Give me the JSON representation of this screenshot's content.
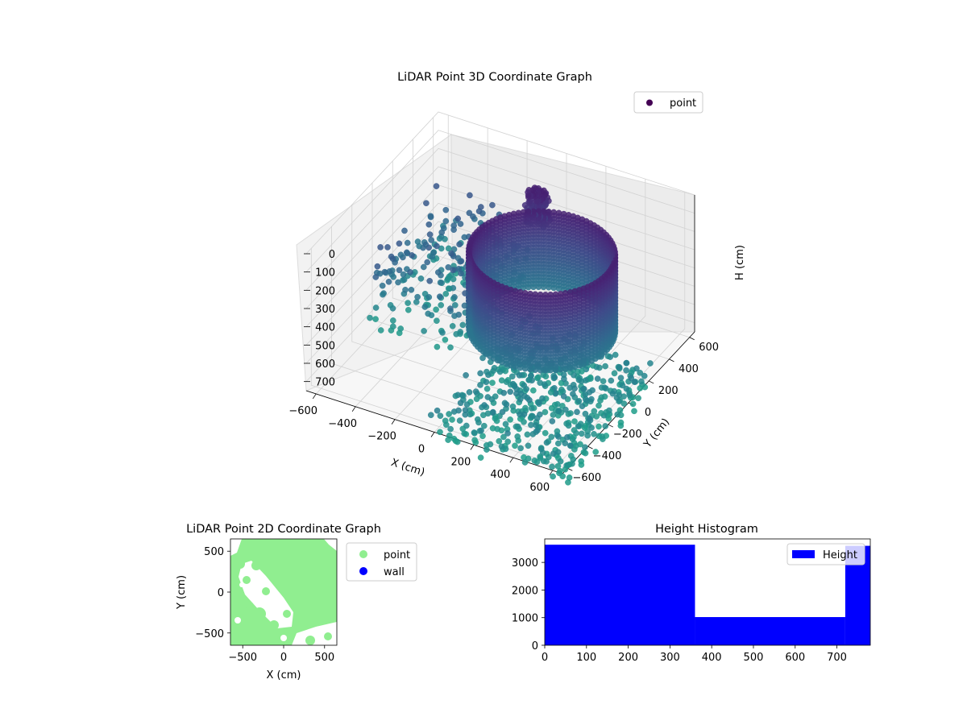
{
  "chart_data": [
    {
      "type": "scatter",
      "projection": "3d",
      "title": "LiDAR Point 3D Coordinate Graph",
      "xlabel": "X (cm)",
      "ylabel": "Y (cm)",
      "zlabel": "H (cm)",
      "xlim": [
        -650,
        650
      ],
      "ylim": [
        -650,
        650
      ],
      "zlim": [
        750,
        0
      ],
      "z_axis_inverted": true,
      "x_ticks": [
        -600,
        -400,
        -200,
        0,
        200,
        400,
        600
      ],
      "y_ticks": [
        -600,
        -400,
        -200,
        0,
        200,
        400,
        600
      ],
      "z_ticks": [
        0,
        100,
        200,
        300,
        400,
        500,
        600,
        700
      ],
      "grid": true,
      "legend": {
        "location": "upper-right",
        "entries": [
          {
            "label": "point",
            "color": "#440154"
          }
        ]
      },
      "colormap": "viridis",
      "series": [
        {
          "name": "point",
          "description_groups": [
            {
              "shape": "cylindrical-wall",
              "center": [
                180,
                60
              ],
              "radius": 330,
              "h_range": [
                130,
                560
              ]
            },
            {
              "shape": "dense-cluster",
              "center": [
                -60,
                480
              ],
              "h_range": [
                120,
                300
              ]
            },
            {
              "shape": "scatter-patches",
              "x_range": [
                -650,
                -150
              ],
              "y_range": [
                -100,
                650
              ],
              "h_range": [
                380,
                760
              ]
            },
            {
              "shape": "floor-scatter",
              "x_range": [
                0,
                700
              ],
              "y_range": [
                -700,
                200
              ],
              "h_range": [
                600,
                780
              ]
            }
          ]
        }
      ]
    },
    {
      "type": "scatter",
      "title": "LiDAR Point 2D Coordinate Graph",
      "xlabel": "X (cm)",
      "ylabel": "Y (cm)",
      "xlim": [
        -650,
        650
      ],
      "ylim": [
        -650,
        650
      ],
      "x_ticks": [
        -500,
        0,
        500
      ],
      "y_ticks": [
        -500,
        0,
        500
      ],
      "legend": {
        "location": "outside-right",
        "entries": [
          {
            "label": "point",
            "color": "#90ee90"
          },
          {
            "label": "wall",
            "color": "#0000ff"
          }
        ]
      },
      "series": [
        {
          "name": "point",
          "color": "#90ee90",
          "coverage": "most of area except upper-left wedge and lower-left gaps"
        },
        {
          "name": "wall",
          "color": "#0000ff",
          "values": []
        }
      ]
    },
    {
      "type": "bar",
      "title": "Height Histogram",
      "xlabel": "",
      "ylabel": "",
      "xlim": [
        0,
        780
      ],
      "ylim": [
        0,
        3850
      ],
      "x_ticks": [
        0,
        100,
        200,
        300,
        400,
        500,
        600,
        700
      ],
      "y_ticks": [
        0,
        1000,
        2000,
        3000
      ],
      "legend": {
        "location": "upper-right",
        "entries": [
          {
            "label": "Height",
            "color": "#0000ff"
          }
        ]
      },
      "color": "#0000ff",
      "bins": [
        {
          "start": 0,
          "end": 360,
          "count": 3640
        },
        {
          "start": 360,
          "end": 720,
          "count": 1020
        },
        {
          "start": 720,
          "end": 780,
          "count": 3600
        }
      ]
    }
  ]
}
